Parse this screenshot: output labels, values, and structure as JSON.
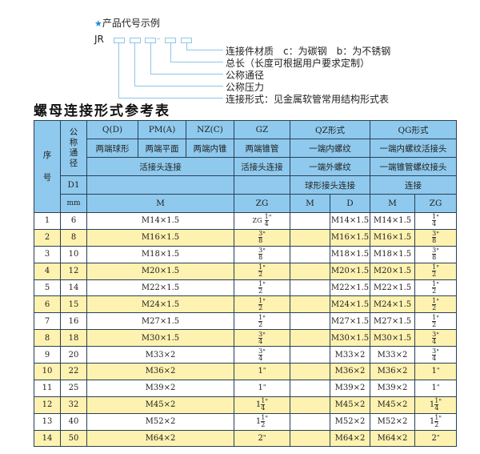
{
  "example": {
    "star_icon": "star-icon",
    "heading": "产品代号示例",
    "code_prefix": "JR",
    "separator": "-",
    "labels": [
      "连接件材质　c：为碳钢　b：为不锈钢",
      "总长（长度可根据用户要求定制）",
      "公称通径",
      "公称压力",
      "连接形式：见金属软管常用结构形式表"
    ]
  },
  "table_title": "螺母连接形式参考表",
  "colors": {
    "header": "#8fcaee",
    "stripe": "#fdf2b0",
    "border": "#2b3e55",
    "accent": "#1a8fd6"
  },
  "header": {
    "seq": "序\n\n号",
    "dn": "公称通径",
    "d1": "D1",
    "mm": "mm",
    "types": [
      "Q(D)",
      "PM(A)",
      "NZ(C)",
      "GZ",
      "QZ形式",
      "QG形式"
    ],
    "ends": [
      "两端球形",
      "两端平面",
      "两端内锥",
      "两端锥管",
      "一端内螺纹",
      "一端内螺纹活接头"
    ],
    "conn_a": "活接头连接",
    "conn_gz": "活接头连接",
    "conn_qz_1": "一端外螺纹",
    "conn_qz_2": "球形接头连接",
    "conn_qg_1": "一端锥管螺纹接头",
    "conn_qg_2": "连接",
    "units": [
      "M",
      "ZG",
      "M",
      "D",
      "M",
      "ZG"
    ]
  },
  "rows": [
    {
      "no": "1",
      "dn": "6",
      "m": "M14×1.5",
      "zg": {
        "prefix": "ZG",
        "whole": "",
        "num": "1",
        "den": "4"
      },
      "qz_d": "M14×1.5",
      "qg_m": "M14×1.5",
      "qg_zg": {
        "whole": "",
        "num": "1",
        "den": "4"
      }
    },
    {
      "no": "2",
      "dn": "8",
      "m": "M16×1.5",
      "zg": {
        "whole": "",
        "num": "3",
        "den": "8"
      },
      "qz_d": "M16×1.5",
      "qg_m": "M16×1.5",
      "qg_zg": {
        "whole": "",
        "num": "3",
        "den": "8"
      }
    },
    {
      "no": "3",
      "dn": "10",
      "m": "M18×1.5",
      "zg": {
        "whole": "",
        "num": "3",
        "den": "8"
      },
      "qz_d": "M18×1.5",
      "qg_m": "M18×1.5",
      "qg_zg": {
        "whole": "",
        "num": "3",
        "den": "8"
      }
    },
    {
      "no": "4",
      "dn": "12",
      "m": "M20×1.5",
      "zg": {
        "whole": "",
        "num": "1",
        "den": "2"
      },
      "qz_d": "M20×1.5",
      "qg_m": "M20×1.5",
      "qg_zg": {
        "whole": "",
        "num": "1",
        "den": "2"
      }
    },
    {
      "no": "5",
      "dn": "14",
      "m": "M22×1.5",
      "zg": {
        "whole": "",
        "num": "1",
        "den": "2"
      },
      "qz_d": "M22×1.5",
      "qg_m": "M22×1.5",
      "qg_zg": {
        "whole": "",
        "num": "1",
        "den": "2"
      }
    },
    {
      "no": "6",
      "dn": "15",
      "m": "M24×1.5",
      "zg": {
        "whole": "",
        "num": "1",
        "den": "2"
      },
      "qz_d": "M24×1.5",
      "qg_m": "M24×1.5",
      "qg_zg": {
        "whole": "",
        "num": "1",
        "den": "2"
      }
    },
    {
      "no": "7",
      "dn": "16",
      "m": "M27×1.5",
      "zg": {
        "whole": "",
        "num": "1",
        "den": "2"
      },
      "qz_d": "M27×1.5",
      "qg_m": "M27×1.5",
      "qg_zg": {
        "whole": "",
        "num": "1",
        "den": "2"
      }
    },
    {
      "no": "8",
      "dn": "18",
      "m": "M30×1.5",
      "zg": {
        "whole": "",
        "num": "3",
        "den": "4"
      },
      "qz_d": "M30×1.5",
      "qg_m": "M30×1.5",
      "qg_zg": {
        "whole": "",
        "num": "3",
        "den": "4"
      }
    },
    {
      "no": "9",
      "dn": "20",
      "m": "M33×2",
      "zg": {
        "whole": "",
        "num": "3",
        "den": "4"
      },
      "qz_d": "M33×2",
      "qg_m": "M33×2",
      "qg_zg": {
        "whole": "",
        "num": "3",
        "den": "4"
      }
    },
    {
      "no": "10",
      "dn": "22",
      "m": "M36×2",
      "zg": {
        "whole": "1",
        "num": "",
        "den": ""
      },
      "qz_d": "M36×2",
      "qg_m": "M36×2",
      "qg_zg": {
        "whole": "1",
        "num": "",
        "den": ""
      }
    },
    {
      "no": "11",
      "dn": "25",
      "m": "M39×2",
      "zg": {
        "whole": "1",
        "num": "",
        "den": ""
      },
      "qz_d": "M39×2",
      "qg_m": "M39×2",
      "qg_zg": {
        "whole": "1",
        "num": "",
        "den": ""
      }
    },
    {
      "no": "12",
      "dn": "32",
      "m": "M45×2",
      "zg": {
        "whole": "1",
        "num": "1",
        "den": "4"
      },
      "qz_d": "M45×2",
      "qg_m": "M45×2",
      "qg_zg": {
        "whole": "1",
        "num": "1",
        "den": "4"
      }
    },
    {
      "no": "13",
      "dn": "40",
      "m": "M52×2",
      "zg": {
        "whole": "1",
        "num": "1",
        "den": "2"
      },
      "qz_d": "M52×2",
      "qg_m": "M52×2",
      "qg_zg": {
        "whole": "1",
        "num": "1",
        "den": "2"
      }
    },
    {
      "no": "14",
      "dn": "50",
      "m": "M64×2",
      "zg": {
        "whole": "2",
        "num": "",
        "den": ""
      },
      "qz_d": "M64×2",
      "qg_m": "M64×2",
      "qg_zg": {
        "whole": "2",
        "num": "",
        "den": ""
      }
    }
  ],
  "inch_mark": "\""
}
